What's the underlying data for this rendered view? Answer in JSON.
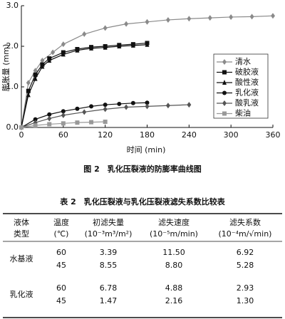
{
  "chart_data": {
    "type": "line",
    "x_label": "时间 (min)",
    "y_label": "膨胀量 (mm)",
    "xlim": [
      0,
      360
    ],
    "xticks": [
      0,
      60,
      120,
      180,
      240,
      300,
      360
    ],
    "ylim": [
      0,
      3
    ],
    "yticks": [
      {
        "value": 0,
        "label": "0.0"
      },
      {
        "value": 1,
        "label": "1.0"
      },
      {
        "value": 2,
        "label": "2.0"
      },
      {
        "value": 3,
        "label": "3.0"
      }
    ],
    "legend": "right",
    "series": [
      {
        "name": "清水",
        "color": "#8a8a8a",
        "marker": "diamond",
        "x": [
          0,
          10,
          20,
          30,
          45,
          60,
          90,
          120,
          150,
          180,
          210,
          240,
          270,
          300,
          330,
          360
        ],
        "values": [
          0,
          1.1,
          1.4,
          1.65,
          1.85,
          2.05,
          2.3,
          2.45,
          2.55,
          2.6,
          2.65,
          2.68,
          2.7,
          2.72,
          2.73,
          2.75
        ]
      },
      {
        "name": "破胶液",
        "color": "#111111",
        "marker": "square",
        "x": [
          0,
          10,
          20,
          30,
          40,
          60,
          80,
          100,
          120,
          140,
          160,
          180
        ],
        "values": [
          0,
          0.9,
          1.3,
          1.55,
          1.7,
          1.85,
          1.93,
          1.98,
          2.0,
          2.03,
          2.05,
          2.08
        ]
      },
      {
        "name": "酸性液",
        "color": "#111111",
        "marker": "triangle",
        "x": [
          0,
          10,
          20,
          30,
          40,
          60,
          80,
          100,
          120,
          140,
          160,
          180
        ],
        "values": [
          0,
          0.8,
          1.2,
          1.5,
          1.65,
          1.8,
          1.9,
          1.95,
          1.97,
          2.0,
          2.02,
          2.04
        ]
      },
      {
        "name": "乳化液",
        "color": "#111111",
        "marker": "circle",
        "x": [
          0,
          20,
          40,
          60,
          80,
          100,
          120,
          140,
          160,
          180
        ],
        "values": [
          0,
          0.2,
          0.32,
          0.4,
          0.46,
          0.52,
          0.56,
          0.58,
          0.6,
          0.61
        ]
      },
      {
        "name": "酸乳液",
        "color": "#555555",
        "marker": "diamond",
        "x": [
          0,
          20,
          40,
          60,
          90,
          120,
          150,
          180,
          210,
          240
        ],
        "values": [
          0,
          0.12,
          0.22,
          0.3,
          0.38,
          0.45,
          0.5,
          0.52,
          0.54,
          0.56
        ]
      },
      {
        "name": "柴油",
        "color": "#999999",
        "marker": "square",
        "x": [
          0,
          20,
          40,
          60,
          80,
          100,
          120
        ],
        "values": [
          0,
          0.05,
          0.08,
          0.1,
          0.12,
          0.13,
          0.14
        ]
      }
    ]
  },
  "figure_caption": "图 2　乳化压裂液的防膨率曲线图",
  "table": {
    "title": "表 2　乳化压裂液与乳化压裂液滤失系数比较表",
    "header": [
      [
        "液体",
        "类型"
      ],
      [
        "温度",
        "(℃)"
      ],
      [
        "初滤失量",
        "(10⁻³m³/m²)"
      ],
      [
        "滤失速度",
        "(10⁻⁵m/min)"
      ],
      [
        "滤失系数",
        "(10⁻⁴m/√min)"
      ]
    ],
    "groups": [
      {
        "name": "水基液",
        "rows": [
          [
            "60",
            "3.39",
            "11.50",
            "6.92"
          ],
          [
            "45",
            "8.55",
            "8.80",
            "5.28"
          ]
        ]
      },
      {
        "name": "乳化液",
        "rows": [
          [
            "60",
            "6.78",
            "4.88",
            "2.93"
          ],
          [
            "45",
            "1.47",
            "2.16",
            "1.30"
          ]
        ]
      }
    ]
  }
}
